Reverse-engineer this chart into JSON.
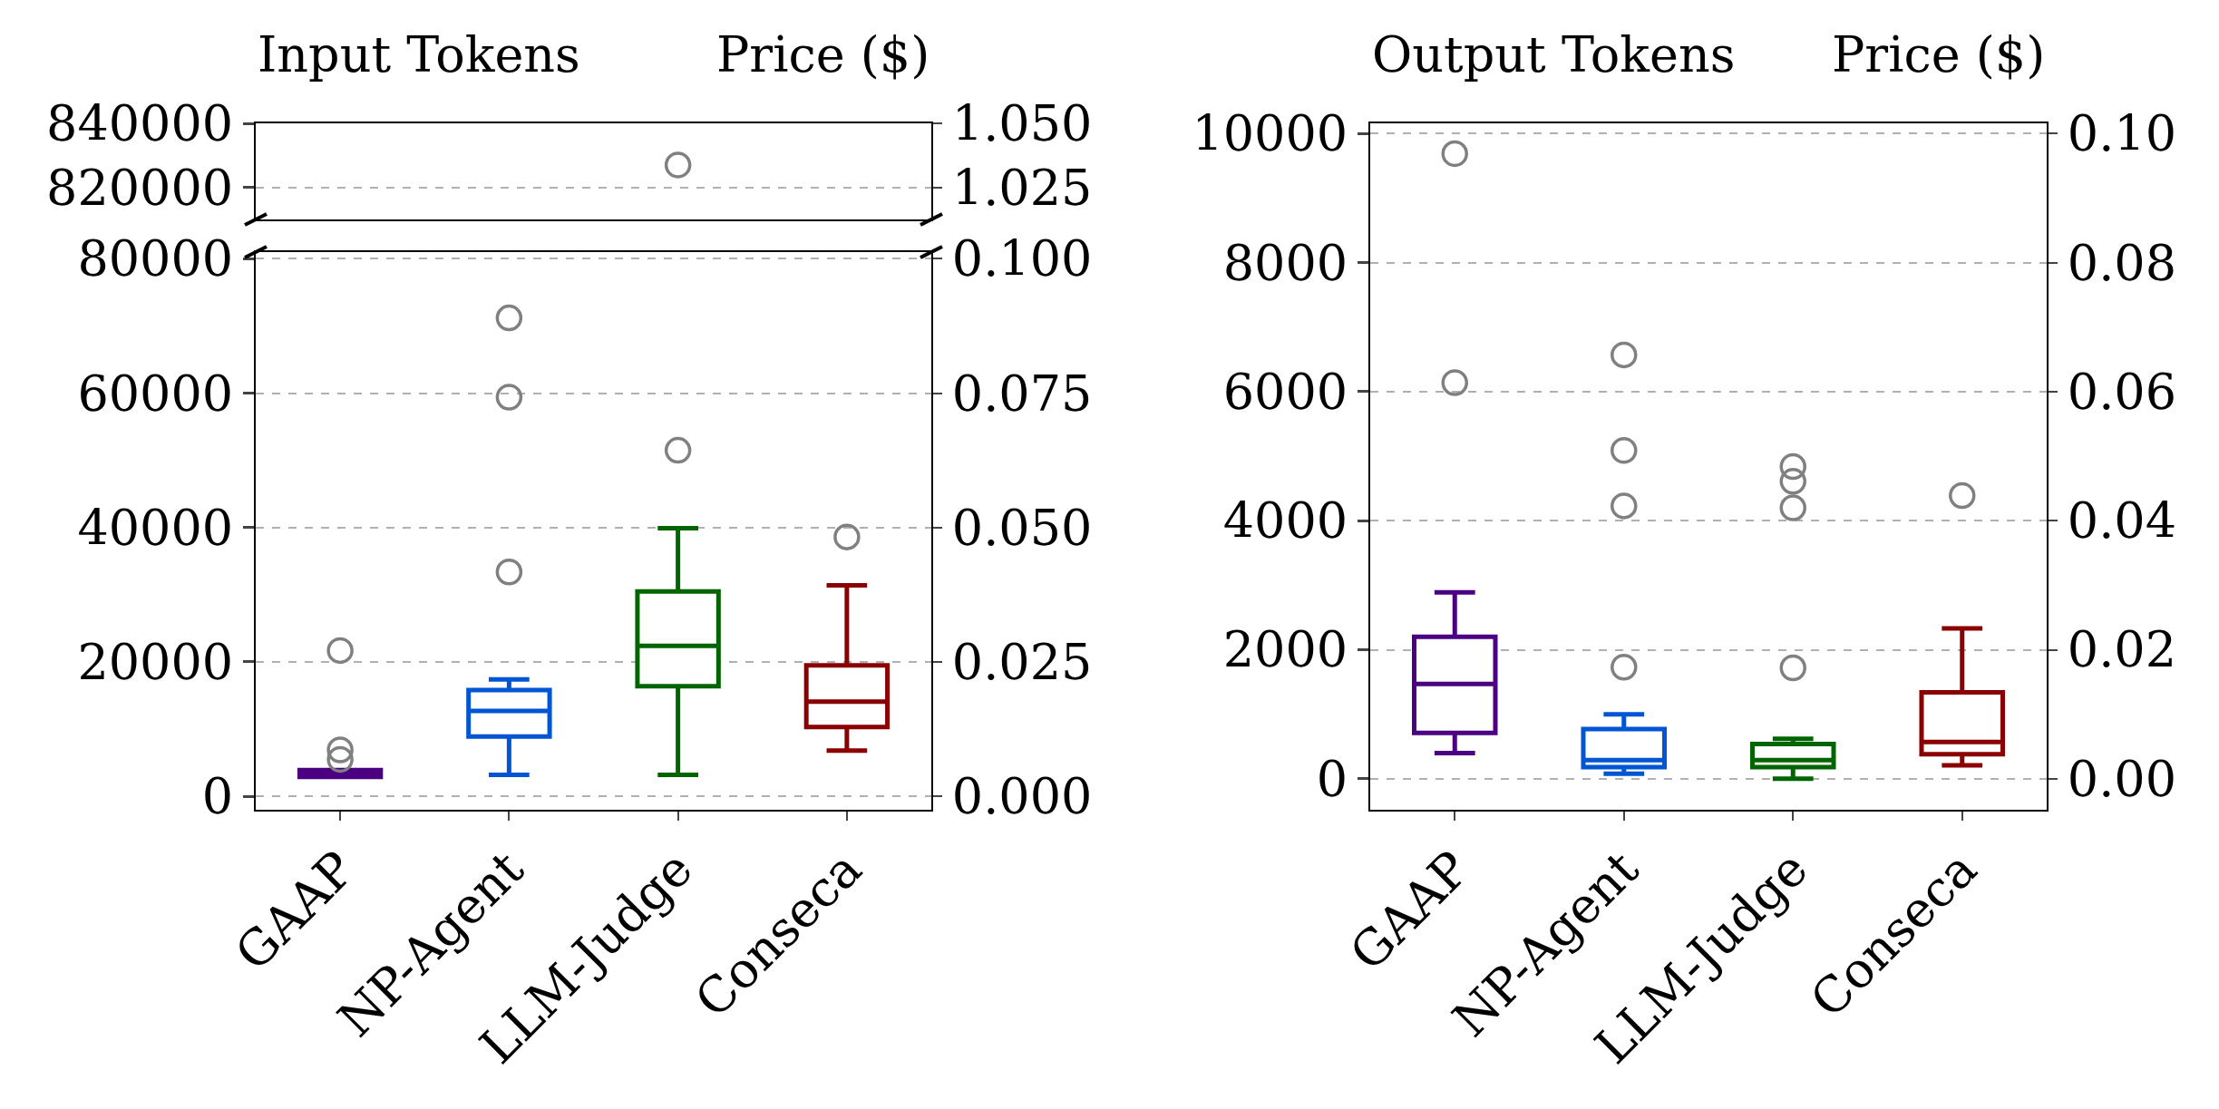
{
  "chart_data": [
    {
      "type": "box",
      "ylabel": "Input Tokens",
      "y2label": "Price ($)",
      "ylim": [
        810000,
        840000
      ],
      "yticks": [
        820000,
        840000
      ],
      "y2lim": [
        1.0125,
        1.05
      ],
      "y2ticks": [
        1.025,
        {
          "value": 1.05,
          "label": "1.050"
        }
      ],
      "tick_labels": "y",
      "grid": "y",
      "marker": "circle",
      "series": [
        {
          "type": "scatter",
          "color": "#808080",
          "values": [
            null,
            null,
            827000,
            null
          ]
        }
      ]
    },
    {
      "type": "box",
      "categories": [
        "GAAP",
        "NP-Agent",
        "LLM-Judge",
        "Conseca"
      ],
      "colors": [
        "#4b0082",
        "#0055d4",
        "#006400",
        "#8b0000"
      ],
      "ylim": [
        -2000,
        81000
      ],
      "yticks": [
        0,
        20000,
        40000,
        60000,
        80000
      ],
      "y2lim": [
        -0.0025,
        0.10125
      ],
      "y2ticks": [
        {
          "value": 0,
          "label": "0.000"
        },
        {
          "value": 0.025,
          "label": "0.025"
        },
        {
          "value": 0.05,
          "label": "0.050"
        },
        {
          "value": 0.075,
          "label": "0.075"
        },
        {
          "value": 0.1,
          "label": "0.100"
        }
      ],
      "grid": "y",
      "marker": "circle",
      "boxes": [
        {
          "low": 2900,
          "q1": 2900,
          "median": 3500,
          "q3": 3900,
          "high": 3900,
          "outliers": [
            21700,
            6900,
            5500
          ]
        },
        {
          "low": 3200,
          "q1": 8900,
          "median": 12700,
          "q3": 15800,
          "high": 17400,
          "outliers": [
            33400,
            59400,
            71200
          ]
        },
        {
          "low": 3200,
          "q1": 16400,
          "median": 22400,
          "q3": 30500,
          "high": 39900,
          "outliers": [
            51500
          ]
        },
        {
          "low": 6800,
          "q1": 10300,
          "median": 14100,
          "q3": 19500,
          "high": 31400,
          "outliers": [
            38600
          ]
        }
      ]
    },
    {
      "type": "box",
      "ylabel": "Output Tokens",
      "y2label": "Price ($)",
      "categories": [
        "GAAP",
        "NP-Agent",
        "LLM-Judge",
        "Conseca"
      ],
      "colors": [
        "#4b0082",
        "#0055d4",
        "#006400",
        "#8b0000"
      ],
      "ylim": [
        -480,
        10160
      ],
      "yticks": [
        0,
        2000,
        4000,
        6000,
        8000,
        10000
      ],
      "y2lim": [
        -0.0048,
        0.1016
      ],
      "y2ticks": [
        {
          "value": 0,
          "label": "0.00"
        },
        {
          "value": 0.02,
          "label": "0.02"
        },
        {
          "value": 0.04,
          "label": "0.04"
        },
        {
          "value": 0.06,
          "label": "0.06"
        },
        {
          "value": 0.08,
          "label": "0.08"
        },
        {
          "value": 0.1,
          "label": "0.10"
        }
      ],
      "grid": "y",
      "marker": "circle",
      "boxes": [
        {
          "low": 400,
          "q1": 710,
          "median": 1470,
          "q3": 2200,
          "high": 2890,
          "outliers": [
            6140,
            9690
          ]
        },
        {
          "low": 80,
          "q1": 180,
          "median": 290,
          "q3": 770,
          "high": 1000,
          "outliers": [
            1730,
            4230,
            5090,
            6570
          ]
        },
        {
          "low": 0,
          "q1": 180,
          "median": 290,
          "q3": 540,
          "high": 620,
          "outliers": [
            1720,
            4200,
            4610,
            4840
          ]
        },
        {
          "low": 210,
          "q1": 380,
          "median": 570,
          "q3": 1340,
          "high": 2330,
          "outliers": [
            4390
          ]
        }
      ]
    }
  ]
}
